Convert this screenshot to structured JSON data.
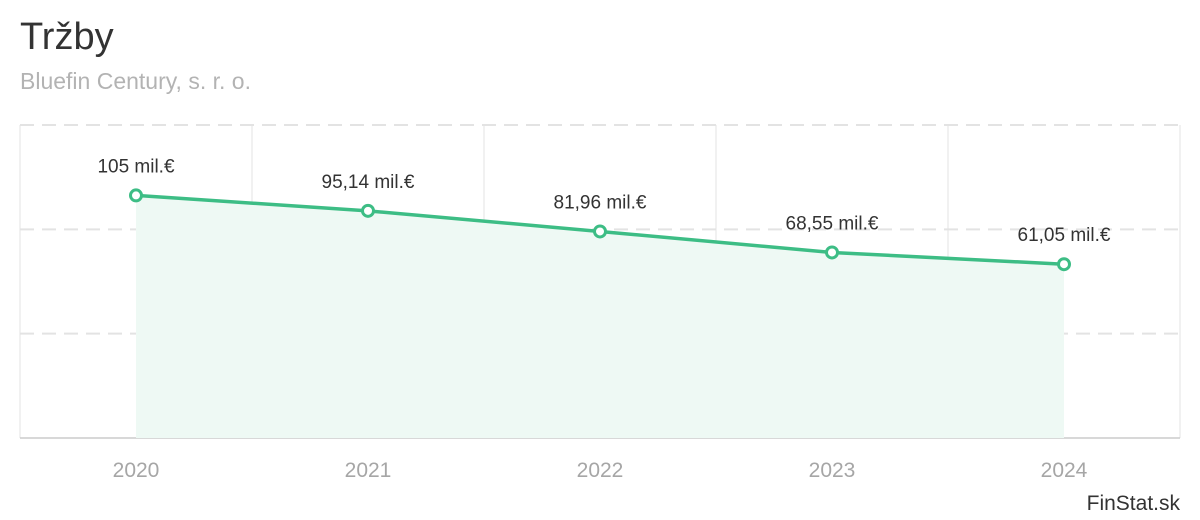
{
  "header": {
    "title": "Tržby",
    "subtitle": "Bluefin Century, s. r. o."
  },
  "footer": {
    "credit": "FinStat.sk"
  },
  "colors": {
    "line": "#3dbd85",
    "area": "#eef9f4",
    "grid": "#e3e3e3",
    "axis": "#cccccc"
  },
  "chart_data": {
    "type": "area",
    "title": "Tržby",
    "subtitle": "Bluefin Century, s. r. o.",
    "xlabel": "",
    "ylabel": "",
    "categories": [
      "2020",
      "2021",
      "2022",
      "2023",
      "2024"
    ],
    "series": [
      {
        "name": "Tržby",
        "values": [
          105,
          95.14,
          81.96,
          68.55,
          61.05
        ],
        "labels": [
          "105 mil.€",
          "95,14 mil.€",
          "81,96 mil.€",
          "68,55 mil.€",
          "61,05 mil.€"
        ]
      }
    ],
    "unit": "mil.€",
    "ylim": [
      -50,
      150
    ],
    "grid": true,
    "legend": "none"
  }
}
